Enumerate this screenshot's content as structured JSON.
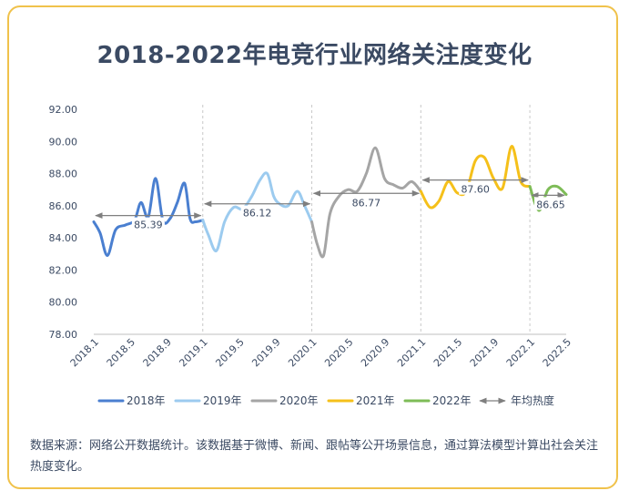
{
  "title": "2018-2022年电竞行业网络关注度变化",
  "source_note": "数据来源：网络公开数据统计。该数据基于微博、新闻、跟帖等公开场景信息，通过算法模型计算出社会关注热度变化。",
  "chart_data": {
    "type": "line",
    "title": "2018-2022年电竞行业网络关注度变化",
    "ylim": [
      78,
      92
    ],
    "y_ticks": [
      "92.00",
      "90.00",
      "88.00",
      "86.00",
      "84.00",
      "82.00",
      "80.00",
      "78.00"
    ],
    "x_ticks": [
      "2018.1",
      "2018.5",
      "2018.9",
      "2019.1",
      "2019.5",
      "2019.9",
      "2020.1",
      "2020.5",
      "2020.9",
      "2021.1",
      "2021.5",
      "2021.9",
      "2022.1",
      "2022.5"
    ],
    "x_range": [
      0,
      52
    ],
    "grid": "vertical dashed lines at each January",
    "legend_position": "bottom",
    "series": [
      {
        "name": "2018年",
        "color": "#4a7fd0",
        "x": [
          0,
          0.7,
          1.5,
          2.4,
          3.5,
          4.5,
          5.2,
          6.0,
          6.8,
          7.6,
          8.4,
          9.2,
          10.0,
          10.6,
          11.2,
          12.0
        ],
        "y": [
          85.0,
          84.3,
          82.9,
          84.5,
          84.8,
          85.1,
          86.2,
          85.3,
          87.7,
          85.1,
          85.2,
          86.2,
          87.4,
          85.2,
          85.0,
          85.1
        ]
      },
      {
        "name": "2019年",
        "color": "#9ccbef",
        "x": [
          12.0,
          12.6,
          13.5,
          14.4,
          15.4,
          16.4,
          17.4,
          18.3,
          19.1,
          19.8,
          20.5,
          21.4,
          22.4,
          23.2,
          24.0
        ],
        "y": [
          85.1,
          84.2,
          83.2,
          85.0,
          85.9,
          85.8,
          86.6,
          87.6,
          88.0,
          86.6,
          86.1,
          86.0,
          86.9,
          86.0,
          85.0
        ]
      },
      {
        "name": "2020年",
        "color": "#a5a5a5",
        "x": [
          24.0,
          24.6,
          25.3,
          26.0,
          27.0,
          28.0,
          29.0,
          30.0,
          31.0,
          32.0,
          33.0,
          34.0,
          35.0,
          36.0
        ],
        "y": [
          85.0,
          83.6,
          82.9,
          85.5,
          86.6,
          87.0,
          86.9,
          88.0,
          89.6,
          87.7,
          87.3,
          87.1,
          87.5,
          86.9
        ]
      },
      {
        "name": "2021年",
        "color": "#f5c01a",
        "x": [
          36.0,
          37.0,
          38.0,
          39.0,
          40.0,
          41.0,
          42.0,
          43.0,
          44.0,
          45.0,
          46.0,
          47.0,
          48.0
        ],
        "y": [
          86.9,
          85.9,
          86.3,
          87.5,
          86.8,
          86.9,
          88.8,
          89.0,
          87.7,
          87.1,
          89.7,
          87.5,
          87.2
        ]
      },
      {
        "name": "2022年",
        "color": "#7ebc57",
        "x": [
          48.0,
          49.0,
          50.0,
          51.0,
          52.0
        ],
        "y": [
          87.2,
          85.7,
          87.0,
          87.2,
          86.7
        ]
      }
    ],
    "annual_averages": {
      "legend_label": "年均热度",
      "color": "#7f7f7f",
      "items": [
        {
          "label": "85.39",
          "value": 85.39,
          "x_start": 0,
          "x_end": 12
        },
        {
          "label": "86.12",
          "value": 86.12,
          "x_start": 12,
          "x_end": 24
        },
        {
          "label": "86.77",
          "value": 86.77,
          "x_start": 24,
          "x_end": 36
        },
        {
          "label": "87.60",
          "value": 87.6,
          "x_start": 36,
          "x_end": 48
        },
        {
          "label": "86.65",
          "value": 86.65,
          "x_start": 48,
          "x_end": 52
        }
      ]
    }
  }
}
